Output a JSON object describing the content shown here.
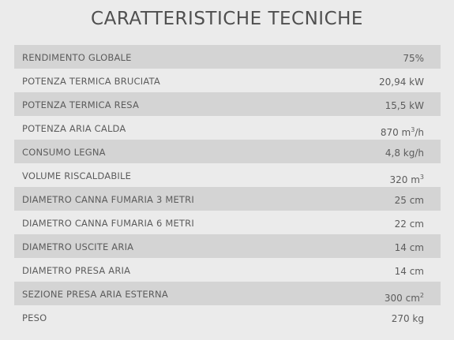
{
  "title": "CARATTERISTICHE TECNICHE",
  "specs": [
    {
      "label": "RENDIMENTO GLOBALE",
      "value": "75%",
      "unit_base": "",
      "unit_exp": ""
    },
    {
      "label": "POTENZA TERMICA BRUCIATA",
      "value": "20,94 kW",
      "unit_base": "",
      "unit_exp": ""
    },
    {
      "label": "POTENZA TERMICA RESA",
      "value": "15,5 kW",
      "unit_base": "",
      "unit_exp": ""
    },
    {
      "label": "POTENZA ARIA CALDA",
      "value": "870 m",
      "unit_exp": "3",
      "unit_base": "/h"
    },
    {
      "label": "CONSUMO LEGNA",
      "value": "4,8 kg/h",
      "unit_base": "",
      "unit_exp": ""
    },
    {
      "label": "VOLUME RISCALDABILE",
      "value": "320 m",
      "unit_exp": "3",
      "unit_base": ""
    },
    {
      "label": "DIAMETRO CANNA FUMARIA 3 METRI",
      "value": "25 cm",
      "unit_base": "",
      "unit_exp": ""
    },
    {
      "label": "DIAMETRO CANNA FUMARIA 6 METRI",
      "value": "22 cm",
      "unit_base": "",
      "unit_exp": ""
    },
    {
      "label": "DIAMETRO USCITE ARIA",
      "value": "14 cm",
      "unit_base": "",
      "unit_exp": ""
    },
    {
      "label": "DIAMETRO PRESA ARIA",
      "value": "14 cm",
      "unit_base": "",
      "unit_exp": ""
    },
    {
      "label": "SEZIONE PRESA ARIA ESTERNA",
      "value": "300 cm",
      "unit_exp": "2",
      "unit_base": ""
    },
    {
      "label": "PESO",
      "value": "270 kg",
      "unit_base": "",
      "unit_exp": ""
    }
  ]
}
